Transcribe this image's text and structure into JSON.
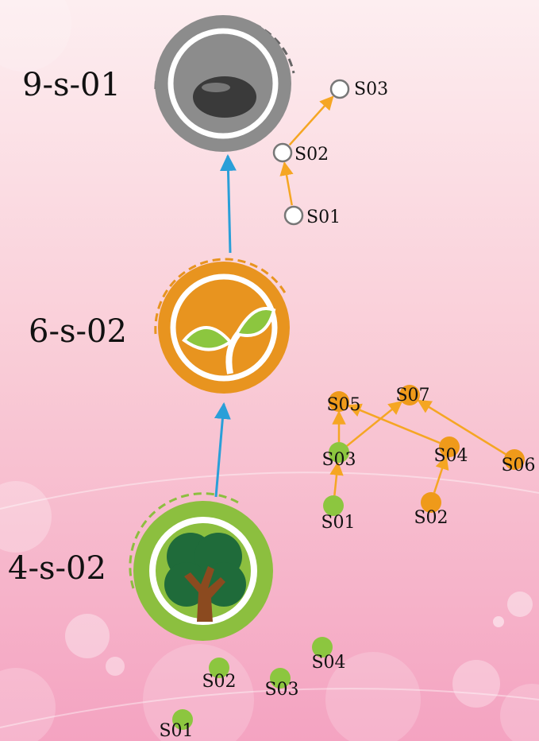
{
  "stages": [
    {
      "label": "9-s-01",
      "nodes": [
        {
          "label": "S03"
        },
        {
          "label": "S02"
        },
        {
          "label": "S01"
        }
      ]
    },
    {
      "label": "6-s-02",
      "nodes": [
        {
          "label": "S05"
        },
        {
          "label": "S07"
        },
        {
          "label": "S03"
        },
        {
          "label": "S04"
        },
        {
          "label": "S06"
        },
        {
          "label": "S01"
        },
        {
          "label": "S02"
        }
      ]
    },
    {
      "label": "4-s-02",
      "nodes": [
        {
          "label": "S04"
        },
        {
          "label": "S02"
        },
        {
          "label": "S03"
        },
        {
          "label": "S01"
        }
      ]
    }
  ]
}
